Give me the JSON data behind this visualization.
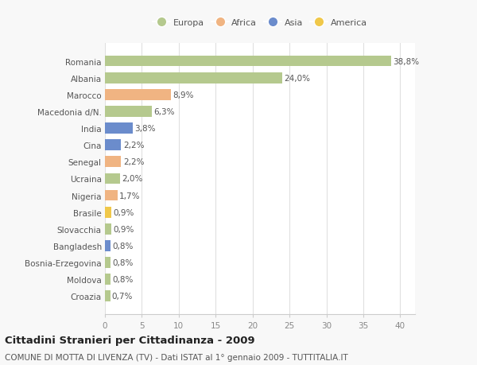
{
  "countries": [
    "Romania",
    "Albania",
    "Marocco",
    "Macedonia d/N.",
    "India",
    "Cina",
    "Senegal",
    "Ucraina",
    "Nigeria",
    "Brasile",
    "Slovacchia",
    "Bangladesh",
    "Bosnia-Erzegovina",
    "Moldova",
    "Croazia"
  ],
  "values": [
    38.8,
    24.0,
    8.9,
    6.3,
    3.8,
    2.2,
    2.2,
    2.0,
    1.7,
    0.9,
    0.9,
    0.8,
    0.8,
    0.8,
    0.7
  ],
  "labels": [
    "38,8%",
    "24,0%",
    "8,9%",
    "6,3%",
    "3,8%",
    "2,2%",
    "2,2%",
    "2,0%",
    "1,7%",
    "0,9%",
    "0,9%",
    "0,8%",
    "0,8%",
    "0,8%",
    "0,7%"
  ],
  "colors": [
    "#b5c98e",
    "#b5c98e",
    "#f0b482",
    "#b5c98e",
    "#6b8ccc",
    "#6b8ccc",
    "#f0b482",
    "#b5c98e",
    "#f0b482",
    "#f0c84a",
    "#b5c98e",
    "#6b8ccc",
    "#b5c98e",
    "#b5c98e",
    "#b5c98e"
  ],
  "legend_labels": [
    "Europa",
    "Africa",
    "Asia",
    "America"
  ],
  "legend_colors": [
    "#b5c98e",
    "#f0b482",
    "#6b8ccc",
    "#f0c84a"
  ],
  "xlim": [
    0,
    42
  ],
  "xticks": [
    0,
    5,
    10,
    15,
    20,
    25,
    30,
    35,
    40
  ],
  "title": "Cittadini Stranieri per Cittadinanza - 2009",
  "subtitle": "COMUNE DI MOTTA DI LIVENZA (TV) - Dati ISTAT al 1° gennaio 2009 - TUTTITALIA.IT",
  "background_color": "#f8f8f8",
  "plot_bg_color": "#ffffff",
  "grid_color": "#e0e0e0",
  "bar_height": 0.65,
  "label_fontsize": 7.5,
  "tick_fontsize": 7.5,
  "title_fontsize": 9.5,
  "subtitle_fontsize": 7.5
}
